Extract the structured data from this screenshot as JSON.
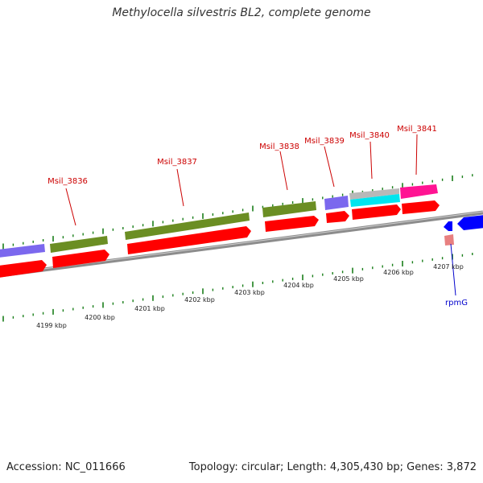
{
  "title": "Methylocella silvestris BL2, complete genome",
  "footer": {
    "accession": "Accession: NC_011666",
    "summary": "Topology: circular; Length: 4,305,430 bp; Genes: 3,872"
  },
  "colors": {
    "cds": "#ff0000",
    "olive": "#6b8e23",
    "purple": "#7b68ee",
    "gray": "#b8b8b8",
    "cyan": "#00e5ee",
    "magenta": "#ff1493",
    "blue": "#0000ff",
    "rna": "#e88080",
    "tick": "#1a7f1a",
    "label": "#cc0000",
    "backbone": "#8c8c8c"
  },
  "scale": {
    "unit": "kbp",
    "ticks": [
      "4199 kbp",
      "4200 kbp",
      "4201 kbp",
      "4202 kbp",
      "4203 kbp",
      "4204 kbp",
      "4205 kbp",
      "4206 kbp",
      "4207 kbp"
    ]
  },
  "gene_labels": [
    "Msil_3836",
    "Msil_3837",
    "Msil_3838",
    "Msil_3839",
    "Msil_3840",
    "Msil_3841",
    "rpmG"
  ]
}
